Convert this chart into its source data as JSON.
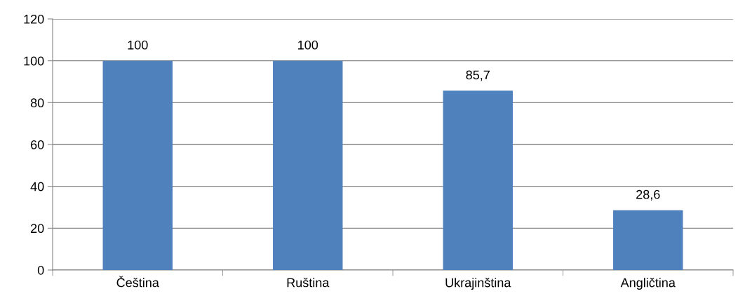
{
  "chart_data": {
    "type": "bar",
    "categories": [
      "Čeština",
      "Ruština",
      "Ukrajinština",
      "Angličtina"
    ],
    "values": [
      100,
      100,
      85.7,
      28.6
    ],
    "value_labels": [
      "100",
      "100",
      "85,7",
      "28,6"
    ],
    "color": "#4f81bd",
    "ylim": [
      0,
      120
    ],
    "yticks": [
      0,
      20,
      40,
      60,
      80,
      100,
      120
    ],
    "grid": "y",
    "legend": false
  }
}
